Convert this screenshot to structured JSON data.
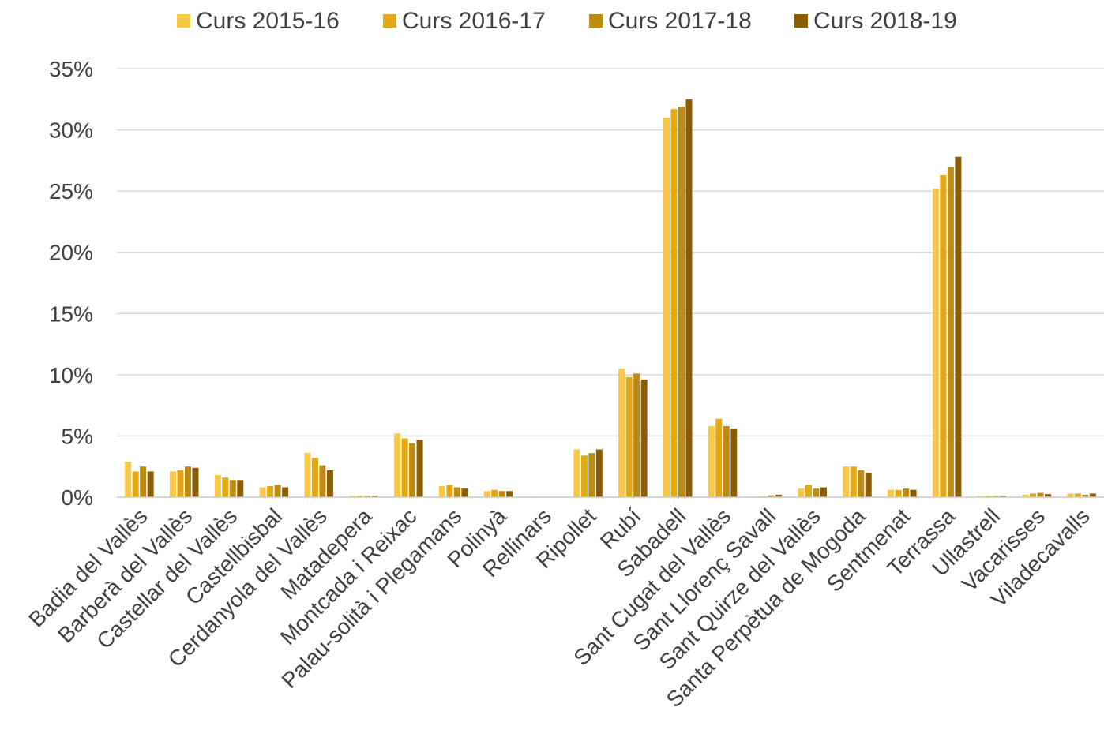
{
  "chart_data": {
    "type": "bar",
    "title": "",
    "xlabel": "",
    "ylabel": "",
    "ylim": [
      0,
      0.35
    ],
    "y_ticks": [
      0,
      0.05,
      0.1,
      0.15,
      0.2,
      0.25,
      0.3,
      0.35
    ],
    "y_tick_labels": [
      "0%",
      "5%",
      "10%",
      "15%",
      "20%",
      "25%",
      "30%",
      "35%"
    ],
    "grid": true,
    "legend_position": "top",
    "categories": [
      "Badia del Vallès",
      "Barberà del Vallès",
      "Castellar del Vallès",
      "Castellbisbal",
      "Cerdanyola del Vallès",
      "Matadepera",
      "Montcada i Reixac",
      "Palau-solità i Plegamans",
      "Polinyà",
      "Rellinars",
      "Ripollet",
      "Rubí",
      "Sabadell",
      "Sant Cugat del Vallès",
      "Sant Llorenç Savall",
      "Sant Quirze del Vallès",
      "Santa Perpètua de Mogoda",
      "Sentmenat",
      "Terrassa",
      "Ullastrell",
      "Vacarisses",
      "Viladecavalls"
    ],
    "series": [
      {
        "name": "Curs 2015-16",
        "color": "#F9C846",
        "values": [
          0.029,
          0.021,
          0.018,
          0.008,
          0.036,
          0.001,
          0.052,
          0.009,
          0.005,
          0.0005,
          0.039,
          0.105,
          0.31,
          0.058,
          0.0005,
          0.007,
          0.025,
          0.006,
          0.252,
          0.001,
          0.002,
          0.003
        ]
      },
      {
        "name": "Curs 2016-17",
        "color": "#E3A812",
        "values": [
          0.021,
          0.022,
          0.016,
          0.009,
          0.032,
          0.001,
          0.048,
          0.01,
          0.006,
          0.0003,
          0.034,
          0.098,
          0.317,
          0.064,
          0.0005,
          0.01,
          0.025,
          0.006,
          0.263,
          0.001,
          0.003,
          0.003
        ]
      },
      {
        "name": "Curs 2017-18",
        "color": "#BD8A12",
        "values": [
          0.025,
          0.025,
          0.014,
          0.01,
          0.026,
          0.001,
          0.044,
          0.008,
          0.005,
          0.0003,
          0.036,
          0.101,
          0.319,
          0.058,
          0.0015,
          0.007,
          0.022,
          0.007,
          0.27,
          0.001,
          0.0035,
          0.002
        ]
      },
      {
        "name": "Curs 2018-19",
        "color": "#8B5E06",
        "values": [
          0.021,
          0.024,
          0.014,
          0.008,
          0.022,
          0.001,
          0.047,
          0.007,
          0.005,
          0.0003,
          0.039,
          0.096,
          0.325,
          0.056,
          0.002,
          0.008,
          0.02,
          0.006,
          0.278,
          0.001,
          0.0025,
          0.003
        ]
      }
    ]
  }
}
